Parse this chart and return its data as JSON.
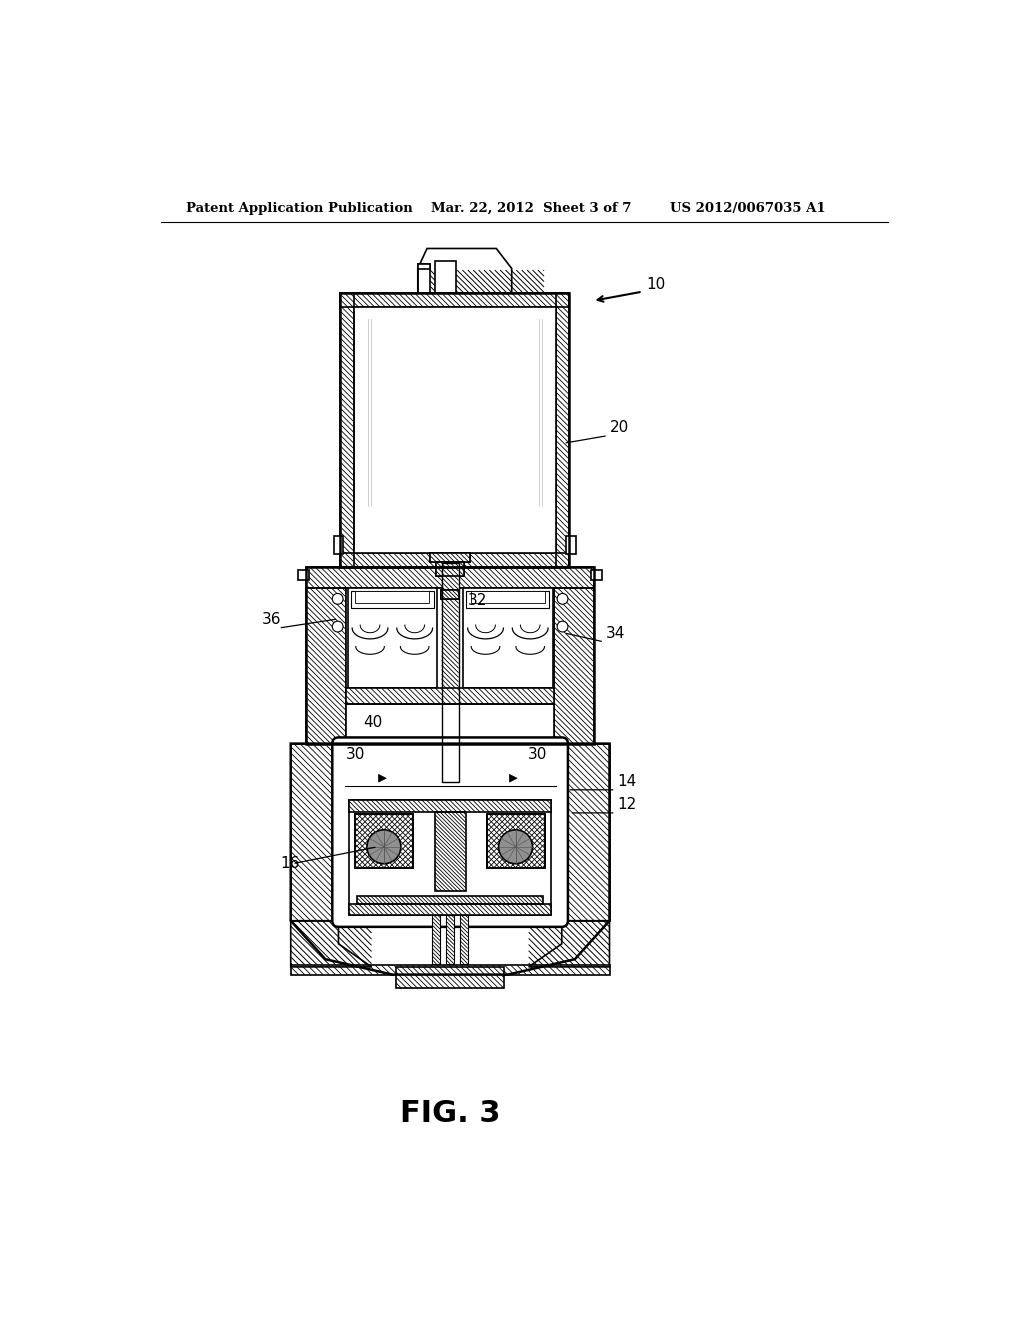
{
  "bg_color": "#ffffff",
  "line_color": "#000000",
  "header_left": "Patent Application Publication",
  "header_mid": "Mar. 22, 2012  Sheet 3 of 7",
  "header_right": "US 2012/0067035 A1",
  "fig_label": "FIG. 3"
}
